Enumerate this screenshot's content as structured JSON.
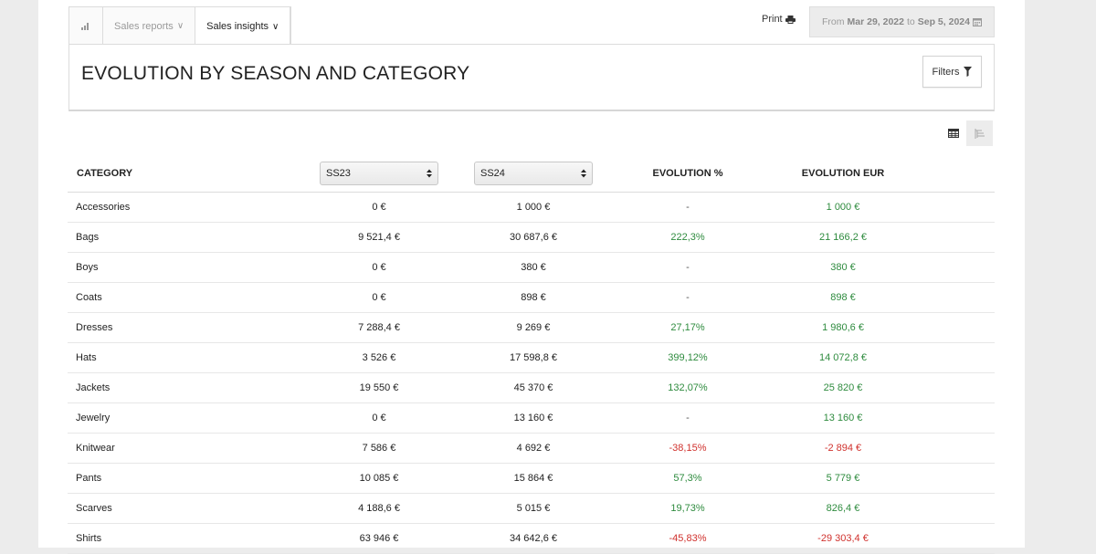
{
  "tabs": {
    "sales_reports": "Sales reports",
    "sales_insights": "Sales insights"
  },
  "print_label": "Print",
  "date_range": {
    "from_label": "From",
    "from": "Mar 29, 2022",
    "to_label": "to",
    "to": "Sep 5, 2024"
  },
  "title": "EVOLUTION BY SEASON AND CATEGORY",
  "filters_label": "Filters",
  "table": {
    "headers": {
      "category": "CATEGORY",
      "season_a": "SS23",
      "season_b": "SS24",
      "evolution_pct": "EVOLUTION %",
      "evolution_eur": "EVOLUTION EUR"
    },
    "rows": [
      {
        "category": "Accessories",
        "a": "0 €",
        "b": "1 000 €",
        "pct": "-",
        "eur": "1 000 €",
        "pct_sign": "neu",
        "eur_sign": "pos"
      },
      {
        "category": "Bags",
        "a": "9 521,4 €",
        "b": "30 687,6 €",
        "pct": "222,3%",
        "eur": "21 166,2 €",
        "pct_sign": "pos",
        "eur_sign": "pos"
      },
      {
        "category": "Boys",
        "a": "0 €",
        "b": "380 €",
        "pct": "-",
        "eur": "380 €",
        "pct_sign": "neu",
        "eur_sign": "pos"
      },
      {
        "category": "Coats",
        "a": "0 €",
        "b": "898 €",
        "pct": "-",
        "eur": "898 €",
        "pct_sign": "neu",
        "eur_sign": "pos"
      },
      {
        "category": "Dresses",
        "a": "7 288,4 €",
        "b": "9 269 €",
        "pct": "27,17%",
        "eur": "1 980,6 €",
        "pct_sign": "pos",
        "eur_sign": "pos"
      },
      {
        "category": "Hats",
        "a": "3 526 €",
        "b": "17 598,8 €",
        "pct": "399,12%",
        "eur": "14 072,8 €",
        "pct_sign": "pos",
        "eur_sign": "pos"
      },
      {
        "category": "Jackets",
        "a": "19 550 €",
        "b": "45 370 €",
        "pct": "132,07%",
        "eur": "25 820 €",
        "pct_sign": "pos",
        "eur_sign": "pos"
      },
      {
        "category": "Jewelry",
        "a": "0 €",
        "b": "13 160 €",
        "pct": "-",
        "eur": "13 160 €",
        "pct_sign": "neu",
        "eur_sign": "pos"
      },
      {
        "category": "Knitwear",
        "a": "7 586 €",
        "b": "4 692 €",
        "pct": "-38,15%",
        "eur": "-2 894 €",
        "pct_sign": "neg",
        "eur_sign": "neg"
      },
      {
        "category": "Pants",
        "a": "10 085 €",
        "b": "15 864 €",
        "pct": "57,3%",
        "eur": "5 779 €",
        "pct_sign": "pos",
        "eur_sign": "pos"
      },
      {
        "category": "Scarves",
        "a": "4 188,6 €",
        "b": "5 015 €",
        "pct": "19,73%",
        "eur": "826,4 €",
        "pct_sign": "pos",
        "eur_sign": "pos"
      },
      {
        "category": "Shirts",
        "a": "63 946 €",
        "b": "34 642,6 €",
        "pct": "-45,83%",
        "eur": "-29 303,4 €",
        "pct_sign": "neg",
        "eur_sign": "neg"
      }
    ]
  },
  "colors": {
    "positive": "#2e8b3e",
    "negative": "#d0312d",
    "neutral": "#555555"
  },
  "icons": {
    "chart_tab": "bar-chart-icon",
    "print": "printer-icon",
    "calendar": "calendar-icon",
    "filter": "filter-icon",
    "table_view": "table-view-icon",
    "tree_view": "tree-view-icon",
    "select_arrows": "select-arrows-icon"
  }
}
